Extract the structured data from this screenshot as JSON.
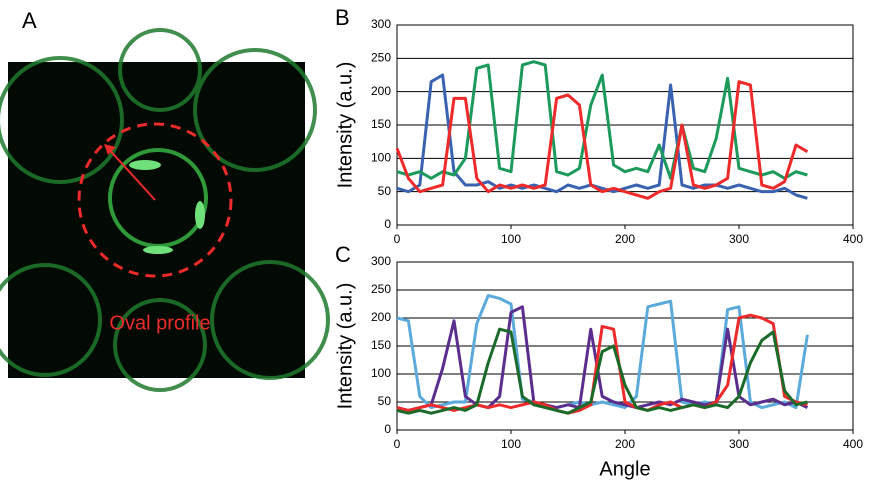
{
  "figure": {
    "panel_a": {
      "label": "A",
      "annotation": "Oval profile"
    }
  },
  "chart_data": [
    {
      "type": "line",
      "panel_label": "B",
      "y_label": "Intensity (a.u.)",
      "x": [
        0,
        10,
        20,
        30,
        40,
        50,
        60,
        70,
        80,
        90,
        100,
        110,
        120,
        130,
        140,
        150,
        160,
        170,
        180,
        190,
        200,
        210,
        220,
        230,
        240,
        250,
        260,
        270,
        280,
        290,
        300,
        310,
        320,
        330,
        340,
        350,
        360
      ],
      "series": [
        {
          "color": "#3a62b0",
          "values": [
            55,
            50,
            60,
            215,
            225,
            80,
            60,
            60,
            65,
            55,
            60,
            55,
            60,
            55,
            50,
            60,
            55,
            60,
            55,
            50,
            55,
            60,
            55,
            60,
            210,
            60,
            55,
            60,
            60,
            55,
            60,
            55,
            50,
            50,
            55,
            45,
            40
          ]
        },
        {
          "color": "#1c9a5c",
          "values": [
            80,
            75,
            80,
            70,
            80,
            75,
            100,
            235,
            240,
            85,
            80,
            240,
            245,
            240,
            80,
            75,
            85,
            180,
            225,
            90,
            80,
            85,
            80,
            120,
            70,
            150,
            85,
            80,
            130,
            220,
            85,
            80,
            75,
            80,
            70,
            80,
            75
          ]
        },
        {
          "color": "#ee2a2a",
          "values": [
            115,
            70,
            50,
            55,
            60,
            190,
            190,
            70,
            50,
            60,
            55,
            60,
            55,
            60,
            190,
            195,
            180,
            60,
            50,
            55,
            50,
            45,
            40,
            50,
            55,
            150,
            60,
            55,
            60,
            70,
            215,
            210,
            60,
            55,
            65,
            120,
            110
          ]
        }
      ],
      "xlim": [
        0,
        400
      ],
      "xticks": [
        0,
        100,
        200,
        300,
        400
      ],
      "ylim": [
        0,
        300
      ],
      "yticks": [
        0,
        50,
        100,
        150,
        200,
        250,
        300
      ],
      "grid": "y"
    },
    {
      "type": "line",
      "panel_label": "C",
      "y_label": "Intensity (a.u.)",
      "x_label": "Angle",
      "x": [
        0,
        10,
        20,
        30,
        40,
        50,
        60,
        70,
        80,
        90,
        100,
        110,
        120,
        130,
        140,
        150,
        160,
        170,
        180,
        190,
        200,
        210,
        220,
        230,
        240,
        250,
        260,
        270,
        280,
        290,
        300,
        310,
        320,
        330,
        340,
        350,
        360
      ],
      "series": [
        {
          "color": "#5aaadc",
          "values": [
            200,
            195,
            60,
            40,
            45,
            50,
            50,
            190,
            240,
            235,
            225,
            55,
            50,
            45,
            40,
            45,
            50,
            45,
            50,
            45,
            40,
            60,
            220,
            225,
            230,
            50,
            45,
            50,
            45,
            215,
            220,
            50,
            40,
            45,
            50,
            40,
            170
          ]
        },
        {
          "color": "#5b2d8f",
          "values": [
            40,
            35,
            40,
            45,
            110,
            195,
            60,
            45,
            40,
            60,
            210,
            220,
            50,
            45,
            40,
            45,
            40,
            180,
            60,
            50,
            45,
            40,
            45,
            50,
            45,
            55,
            50,
            45,
            50,
            180,
            60,
            45,
            50,
            55,
            45,
            50,
            40
          ]
        },
        {
          "color": "#ee2a2a",
          "values": [
            40,
            35,
            40,
            45,
            40,
            35,
            40,
            45,
            40,
            45,
            40,
            45,
            50,
            45,
            35,
            30,
            35,
            45,
            185,
            180,
            50,
            40,
            35,
            45,
            50,
            40,
            45,
            40,
            50,
            80,
            200,
            205,
            200,
            190,
            60,
            50,
            45
          ]
        },
        {
          "color": "#1a6b2a",
          "values": [
            35,
            30,
            35,
            30,
            35,
            40,
            35,
            45,
            120,
            180,
            175,
            60,
            45,
            40,
            35,
            30,
            40,
            50,
            140,
            150,
            80,
            40,
            35,
            40,
            35,
            40,
            45,
            40,
            45,
            40,
            60,
            120,
            160,
            175,
            70,
            45,
            50
          ]
        }
      ],
      "xlim": [
        0,
        400
      ],
      "xticks": [
        0,
        100,
        200,
        300,
        400
      ],
      "ylim": [
        0,
        300
      ],
      "yticks": [
        0,
        50,
        100,
        150,
        200,
        250,
        300
      ],
      "grid": "y"
    }
  ]
}
